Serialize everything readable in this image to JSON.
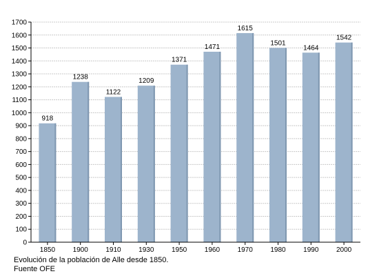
{
  "chart_data": {
    "type": "bar",
    "categories": [
      "1850",
      "1900",
      "1910",
      "1930",
      "1950",
      "1960",
      "1970",
      "1980",
      "1990",
      "2000"
    ],
    "values": [
      918,
      1238,
      1122,
      1209,
      1371,
      1471,
      1615,
      1501,
      1464,
      1542
    ],
    "data_labels": [
      "918",
      "1238",
      "1122",
      "1209",
      "1371",
      "1471",
      "1615",
      "1501",
      "1464",
      "1542"
    ],
    "ylim": [
      0,
      1700
    ],
    "yticks": [
      0,
      100,
      200,
      300,
      400,
      500,
      600,
      700,
      800,
      900,
      1000,
      1100,
      1200,
      1300,
      1400,
      1500,
      1600,
      1700
    ],
    "title": "",
    "xlabel": "",
    "ylabel": "",
    "grid": "horizontal dashed",
    "legend": "none",
    "colors": {
      "bar": "#9db4cc",
      "bar_shadow": "#7f97b0",
      "grid": "#c8c8c8",
      "axis": "#000000"
    }
  },
  "caption": {
    "line1": "Evolución de la población de Alle desde 1850.",
    "line2": "Fuente OFE"
  }
}
